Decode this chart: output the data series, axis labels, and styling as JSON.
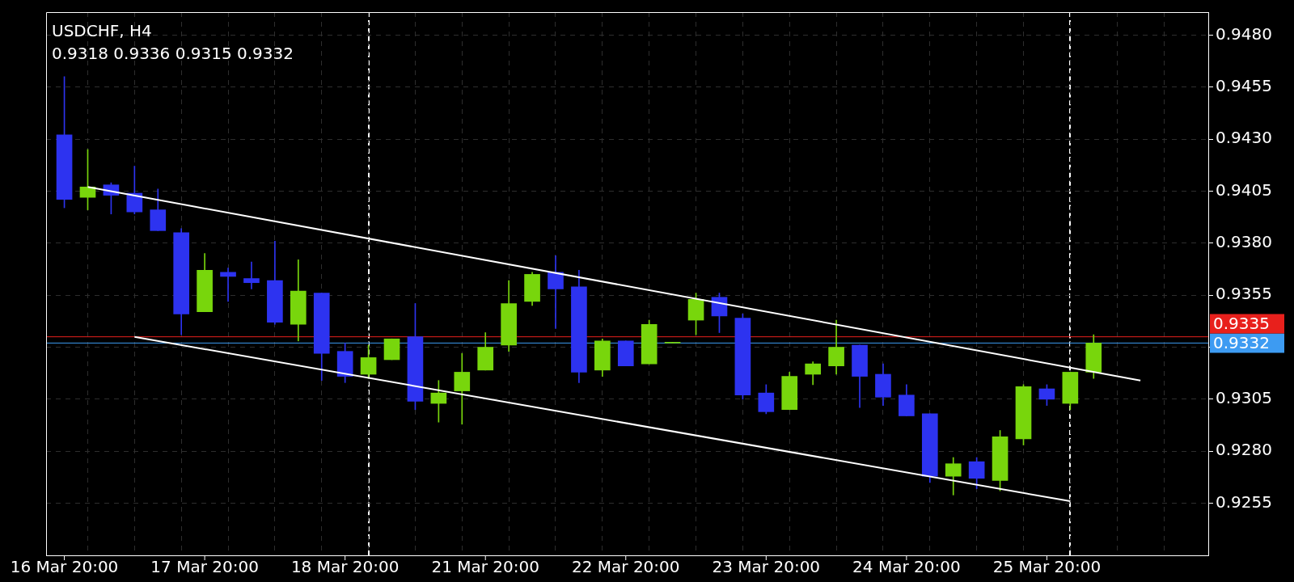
{
  "chart_data": {
    "type": "candlestick",
    "title": "USDCHF, H4",
    "subtitle": "0.9318 0.9336 0.9315 0.9332",
    "categories": [
      "16 Mar 20:00",
      null,
      null,
      null,
      null,
      null,
      "17 Mar 20:00",
      null,
      null,
      null,
      null,
      null,
      "18 Mar 20:00",
      null,
      null,
      null,
      null,
      null,
      "21 Mar 20:00",
      null,
      null,
      null,
      null,
      null,
      "22 Mar 20:00",
      null,
      null,
      null,
      null,
      null,
      "23 Mar 20:00",
      null,
      null,
      null,
      null,
      null,
      "24 Mar 20:00",
      null,
      null,
      null,
      null,
      null,
      "25 Mar 20:00",
      null,
      null,
      null,
      null,
      null,
      null
    ],
    "ohlc": [
      [
        0.9432,
        0.946,
        0.9397,
        0.9401
      ],
      [
        0.9402,
        0.9425,
        0.9396,
        0.9407
      ],
      [
        0.9408,
        0.9409,
        0.9394,
        0.9403
      ],
      [
        0.9404,
        0.9417,
        0.9394,
        0.9395
      ],
      [
        0.9396,
        0.9406,
        0.9386,
        0.9386
      ],
      [
        0.9385,
        0.9387,
        0.9336,
        0.9346
      ],
      [
        0.9347,
        0.9375,
        0.9347,
        0.9367
      ],
      [
        0.9366,
        0.9368,
        0.9352,
        0.9364
      ],
      [
        0.9363,
        0.9371,
        0.9358,
        0.9361
      ],
      [
        0.9362,
        0.9381,
        0.9341,
        0.9342
      ],
      [
        0.9341,
        0.9372,
        0.9333,
        0.9357
      ],
      [
        0.9356,
        0.9356,
        0.9314,
        0.9327
      ],
      [
        0.9328,
        0.9332,
        0.9313,
        0.9316
      ],
      [
        0.9317,
        0.9331,
        0.9315,
        0.9325
      ],
      [
        0.9324,
        0.9334,
        0.9324,
        0.9334
      ],
      [
        0.9335,
        0.9351,
        0.93,
        0.9304
      ],
      [
        0.9303,
        0.9314,
        0.9294,
        0.9308
      ],
      [
        0.9309,
        0.9327,
        0.9293,
        0.9318
      ],
      [
        0.9319,
        0.9337,
        0.9319,
        0.933
      ],
      [
        0.9331,
        0.9362,
        0.9328,
        0.9351
      ],
      [
        0.9352,
        0.9366,
        0.935,
        0.9365
      ],
      [
        0.9366,
        0.9374,
        0.9339,
        0.9358
      ],
      [
        0.9359,
        0.9367,
        0.9313,
        0.9318
      ],
      [
        0.9319,
        0.9334,
        0.9316,
        0.9333
      ],
      [
        0.9333,
        0.9333,
        0.9321,
        0.9321
      ],
      [
        0.9322,
        0.9343,
        0.9322,
        0.9341
      ],
      [
        0.9332,
        0.9332,
        0.9332,
        0.9332
      ],
      [
        0.9343,
        0.9356,
        0.9336,
        0.9353
      ],
      [
        0.9354,
        0.9356,
        0.9337,
        0.9345
      ],
      [
        0.9344,
        0.9346,
        0.9305,
        0.9307
      ],
      [
        0.9308,
        0.9312,
        0.9298,
        0.9299
      ],
      [
        0.93,
        0.9318,
        0.93,
        0.9316
      ],
      [
        0.9317,
        0.9323,
        0.9312,
        0.9322
      ],
      [
        0.9321,
        0.9343,
        0.9317,
        0.933
      ],
      [
        0.9331,
        0.9331,
        0.9301,
        0.9316
      ],
      [
        0.9317,
        0.9322,
        0.9302,
        0.9306
      ],
      [
        0.9307,
        0.9312,
        0.9297,
        0.9297
      ],
      [
        0.9298,
        0.9298,
        0.9265,
        0.9268
      ],
      [
        0.9268,
        0.9277,
        0.9259,
        0.9274
      ],
      [
        0.9275,
        0.9277,
        0.9262,
        0.9267
      ],
      [
        0.9266,
        0.929,
        0.9261,
        0.9287
      ],
      [
        0.9286,
        0.9312,
        0.9283,
        0.9311
      ],
      [
        0.931,
        0.9312,
        0.9302,
        0.9305
      ],
      [
        0.9303,
        0.9318,
        0.93,
        0.9318
      ],
      [
        0.9318,
        0.9336,
        0.9315,
        0.9332
      ],
      null,
      null,
      null,
      null
    ],
    "colors": [
      "#2d33f0",
      "#78d60c",
      "#2d33f0",
      "#2d33f0",
      "#2d33f0",
      "#2d33f0",
      "#78d60c",
      "#2d33f0",
      "#2d33f0",
      "#2d33f0",
      "#78d60c",
      "#2d33f0",
      "#2d33f0",
      "#78d60c",
      "#78d60c",
      "#2d33f0",
      "#78d60c",
      "#78d60c",
      "#78d60c",
      "#78d60c",
      "#78d60c",
      "#2d33f0",
      "#2d33f0",
      "#78d60c",
      "#2d33f0",
      "#78d60c",
      "#78d60c",
      "#78d60c",
      "#2d33f0",
      "#2d33f0",
      "#2d33f0",
      "#78d60c",
      "#78d60c",
      "#78d60c",
      "#2d33f0",
      "#2d33f0",
      "#2d33f0",
      "#2d33f0",
      "#78d60c",
      "#2d33f0",
      "#78d60c",
      "#78d60c",
      "#2d33f0",
      "#78d60c",
      "#78d60c",
      null,
      null,
      null,
      null
    ],
    "series": [
      {
        "type": "line",
        "color": "#ffffff",
        "values": [
          null,
          0.9407,
          null,
          null,
          null,
          null,
          null,
          null,
          null,
          null,
          null,
          null,
          null,
          null,
          null,
          null,
          null,
          null,
          null,
          null,
          null,
          null,
          null,
          null,
          null,
          null,
          null,
          null,
          null,
          null,
          null,
          null,
          null,
          null,
          null,
          null,
          null,
          null,
          null,
          null,
          null,
          null,
          null,
          null,
          null,
          null,
          0.9314,
          null,
          null
        ]
      },
      {
        "type": "line",
        "color": "#ffffff",
        "values": [
          null,
          null,
          null,
          0.9335,
          null,
          null,
          null,
          null,
          null,
          null,
          null,
          null,
          null,
          null,
          null,
          null,
          null,
          null,
          null,
          null,
          null,
          null,
          null,
          null,
          null,
          null,
          null,
          null,
          null,
          null,
          null,
          null,
          null,
          null,
          null,
          null,
          null,
          null,
          null,
          null,
          null,
          null,
          null,
          0.9256,
          null,
          null,
          null,
          null,
          null
        ]
      }
    ],
    "ref_lines": [
      {
        "axis": "y",
        "value": 0.9335,
        "label": "0.9335",
        "color": "#e8201c"
      },
      {
        "axis": "y",
        "value": 0.9332,
        "label": "0.9332",
        "color": "#3d9bf2"
      }
    ],
    "ylim": [
      0.923,
      0.9491
    ],
    "yticks": [
      0.9255,
      {
        "value": 0.928,
        "label": "0.9280"
      },
      0.9305,
      {
        "value": 0.933,
        "label": null
      },
      0.9355,
      {
        "value": 0.938,
        "label": "0.9380"
      },
      0.9405,
      {
        "value": 0.943,
        "label": "0.9430"
      },
      0.9455,
      {
        "value": 0.948,
        "label": "0.9480"
      }
    ],
    "grid": true,
    "legend": false
  }
}
